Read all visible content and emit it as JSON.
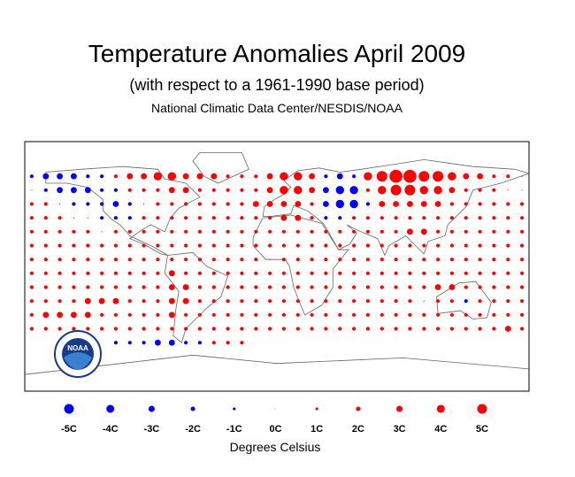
{
  "map": {
    "title": "Temperature Anomalies April 2009",
    "subtitle": "(with respect to a 1961-1990 base period)",
    "source": "National Climatic Data Center/NESDIS/NOAA",
    "logo": "NOAA",
    "positive_color": "#ff0000",
    "negative_color": "#0000ff",
    "lons": [
      -175,
      -165,
      -155,
      -145,
      -135,
      -125,
      -115,
      -105,
      -95,
      -85,
      -75,
      -65,
      -55,
      -45,
      -35,
      -25,
      -15,
      -5,
      5,
      15,
      25,
      35,
      45,
      55,
      65,
      75,
      85,
      95,
      105,
      115,
      125,
      135,
      145,
      155,
      165,
      175
    ],
    "lats": [
      65,
      55,
      45,
      35,
      25,
      15,
      5,
      -5,
      -15,
      -25,
      -35,
      -45,
      -55
    ],
    "anomalies": [
      [
        -1,
        -2,
        -2,
        -2,
        -1,
        -1,
        1,
        2,
        2,
        3,
        3,
        2,
        2,
        2,
        1,
        1,
        1,
        2,
        3,
        3,
        2,
        -1,
        -2,
        -1,
        3,
        4,
        5,
        5,
        4,
        4,
        3,
        2,
        2,
        1,
        1,
        0
      ],
      [
        0,
        -1,
        -2,
        -2,
        -2,
        -1,
        -1,
        1,
        1,
        1,
        2,
        2,
        1,
        1,
        1,
        1,
        1,
        2,
        3,
        3,
        2,
        -2,
        -3,
        -3,
        1,
        3,
        4,
        4,
        3,
        3,
        2,
        1,
        1,
        1,
        0,
        0
      ],
      [
        1,
        1,
        0,
        -1,
        -1,
        -1,
        -2,
        -1,
        0,
        1,
        1,
        1,
        1,
        1,
        1,
        1,
        2,
        2,
        2,
        2,
        1,
        -2,
        -3,
        -3,
        -1,
        2,
        2,
        2,
        2,
        2,
        1,
        1,
        1,
        1,
        1,
        1
      ],
      [
        1,
        1,
        1,
        0,
        0,
        -1,
        -1,
        -1,
        1,
        1,
        1,
        1,
        1,
        1,
        1,
        1,
        1,
        1,
        2,
        2,
        1,
        -1,
        -1,
        1,
        1,
        1,
        1,
        1,
        1,
        1,
        1,
        1,
        1,
        1,
        1,
        1
      ],
      [
        1,
        1,
        1,
        1,
        1,
        0,
        1,
        1,
        1,
        1,
        1,
        1,
        1,
        1,
        1,
        1,
        1,
        1,
        1,
        1,
        1,
        1,
        1,
        1,
        1,
        1,
        1,
        2,
        2,
        1,
        1,
        1,
        1,
        1,
        1,
        1
      ],
      [
        1,
        1,
        1,
        1,
        1,
        1,
        1,
        1,
        1,
        1,
        1,
        1,
        1,
        1,
        1,
        1,
        1,
        1,
        1,
        1,
        1,
        1,
        1,
        1,
        1,
        1,
        1,
        1,
        1,
        1,
        1,
        1,
        1,
        1,
        1,
        1
      ],
      [
        1,
        1,
        1,
        1,
        1,
        1,
        1,
        1,
        1,
        1,
        1,
        1,
        1,
        1,
        1,
        1,
        1,
        0,
        1,
        1,
        1,
        1,
        1,
        1,
        1,
        1,
        1,
        1,
        1,
        1,
        1,
        1,
        1,
        1,
        1,
        1
      ],
      [
        1,
        1,
        1,
        1,
        1,
        1,
        1,
        1,
        1,
        1,
        2,
        1,
        1,
        1,
        1,
        1,
        1,
        1,
        1,
        1,
        1,
        1,
        1,
        1,
        1,
        1,
        1,
        1,
        1,
        1,
        1,
        1,
        1,
        1,
        1,
        1
      ],
      [
        1,
        1,
        1,
        1,
        1,
        1,
        1,
        1,
        1,
        1,
        2,
        2,
        1,
        1,
        1,
        1,
        1,
        1,
        1,
        1,
        1,
        1,
        1,
        1,
        1,
        1,
        1,
        1,
        1,
        2,
        2,
        1,
        1,
        1,
        1,
        1
      ],
      [
        1,
        1,
        1,
        1,
        2,
        2,
        2,
        1,
        1,
        1,
        2,
        2,
        1,
        1,
        1,
        1,
        1,
        1,
        1,
        1,
        1,
        1,
        1,
        1,
        1,
        1,
        1,
        1,
        0,
        1,
        1,
        -1,
        1,
        1,
        1,
        1
      ],
      [
        1,
        2,
        2,
        2,
        2,
        1,
        1,
        1,
        1,
        1,
        2,
        1,
        1,
        1,
        1,
        1,
        1,
        1,
        1,
        1,
        1,
        1,
        1,
        1,
        1,
        1,
        1,
        1,
        1,
        1,
        1,
        1,
        1,
        1,
        1,
        1
      ],
      [
        1,
        1,
        1,
        1,
        1,
        1,
        1,
        1,
        1,
        1,
        1,
        1,
        1,
        1,
        1,
        1,
        1,
        1,
        1,
        1,
        1,
        1,
        1,
        1,
        1,
        1,
        1,
        1,
        1,
        1,
        1,
        1,
        1,
        1,
        2,
        1
      ],
      [
        null,
        null,
        null,
        null,
        null,
        null,
        -1,
        -1,
        -1,
        -2,
        -2,
        -1,
        -1,
        1,
        1,
        1,
        null,
        null,
        null,
        null,
        null,
        null,
        null,
        null,
        null,
        null,
        null,
        null,
        null,
        null,
        null,
        null,
        null,
        null,
        null,
        null
      ]
    ]
  },
  "legend": {
    "items": [
      {
        "value": -5,
        "label": "-5C"
      },
      {
        "value": -4,
        "label": "-4C"
      },
      {
        "value": -3,
        "label": "-3C"
      },
      {
        "value": -2,
        "label": "-2C"
      },
      {
        "value": -1,
        "label": "-1C"
      },
      {
        "value": 0,
        "label": "0C"
      },
      {
        "value": 1,
        "label": "1C"
      },
      {
        "value": 2,
        "label": "2C"
      },
      {
        "value": 3,
        "label": "3C"
      },
      {
        "value": 4,
        "label": "4C"
      },
      {
        "value": 5,
        "label": "5C"
      }
    ],
    "title": "Degrees Celsius"
  }
}
